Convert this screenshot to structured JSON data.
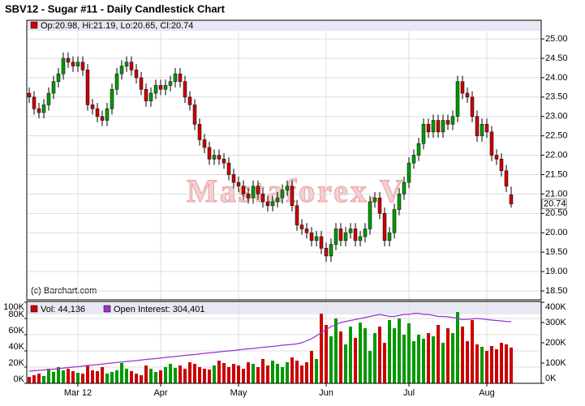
{
  "chart_data": [
    {
      "type": "candlestick",
      "title": "SBV12 - Sugar #11 - Daily Candlestick Chart",
      "ohlc_label": "Op:20.98, Hi:21.19, Lo:20.65, Cl:20.74",
      "last_label": "20.74",
      "watermark": "Mastaforex.V",
      "credit": "(c) Barchart.com",
      "up_color": "#009900",
      "down_color": "#cc0000",
      "label_color": "#cc0000",
      "open": [
        23.6,
        23.5,
        23.2,
        23.1,
        23.3,
        23.6,
        23.9,
        24.1,
        24.5,
        24.4,
        24.3,
        24.4,
        24.2,
        23.3,
        23.2,
        23.0,
        22.9,
        23.2,
        23.7,
        24.1,
        24.3,
        24.4,
        24.2,
        24.0,
        23.7,
        23.4,
        23.6,
        23.8,
        23.7,
        23.8,
        23.9,
        24.1,
        23.9,
        23.5,
        23.3,
        22.8,
        22.4,
        22.2,
        21.9,
        22.0,
        21.9,
        21.8,
        21.5,
        21.3,
        21.2,
        21.0,
        20.9,
        21.2,
        21.0,
        20.8,
        20.7,
        20.8,
        20.9,
        21.1,
        21.2,
        20.7,
        20.2,
        20.1,
        20.0,
        19.8,
        19.9,
        19.6,
        19.4,
        19.7,
        20.1,
        19.8,
        20.0,
        20.1,
        19.8,
        19.9,
        20.1,
        20.8,
        20.9,
        20.5,
        19.8,
        20.0,
        20.6,
        21.0,
        21.3,
        21.8,
        22.0,
        22.3,
        22.8,
        22.6,
        22.9,
        22.6,
        22.9,
        22.8,
        23.0,
        23.9,
        23.6,
        23.5,
        23.0,
        22.5,
        22.8,
        22.6,
        22.0,
        21.9,
        21.6,
        20.98
      ],
      "high": [
        23.75,
        23.65,
        23.35,
        23.45,
        23.75,
        24.05,
        24.25,
        24.65,
        24.65,
        24.55,
        24.55,
        24.55,
        24.35,
        23.45,
        23.35,
        23.15,
        23.35,
        23.85,
        24.25,
        24.45,
        24.55,
        24.55,
        24.35,
        24.15,
        23.85,
        23.75,
        23.95,
        23.95,
        23.95,
        24.05,
        24.25,
        24.25,
        24.05,
        23.65,
        23.45,
        22.95,
        22.55,
        22.35,
        22.15,
        22.15,
        22.05,
        21.95,
        21.65,
        21.45,
        21.35,
        21.15,
        21.35,
        21.35,
        21.15,
        20.95,
        20.95,
        21.05,
        21.25,
        21.35,
        21.35,
        20.85,
        20.35,
        20.25,
        20.15,
        20.05,
        20.05,
        19.75,
        19.85,
        20.25,
        20.25,
        20.15,
        20.25,
        20.25,
        20.05,
        20.25,
        20.95,
        21.05,
        21.05,
        20.65,
        20.15,
        20.75,
        21.15,
        21.45,
        21.95,
        22.15,
        22.45,
        22.95,
        22.95,
        23.05,
        23.05,
        23.05,
        23.05,
        23.15,
        24.05,
        24.05,
        23.75,
        23.65,
        23.15,
        22.95,
        22.95,
        22.75,
        22.15,
        22.05,
        21.75,
        21.19
      ],
      "low": [
        23.35,
        23.05,
        22.95,
        22.95,
        23.15,
        23.45,
        23.75,
        23.95,
        24.25,
        24.15,
        24.15,
        24.05,
        23.15,
        23.05,
        22.85,
        22.75,
        22.75,
        23.05,
        23.55,
        23.95,
        24.15,
        24.05,
        23.85,
        23.55,
        23.25,
        23.25,
        23.45,
        23.55,
        23.55,
        23.65,
        23.75,
        23.75,
        23.35,
        23.15,
        22.65,
        22.25,
        22.05,
        21.75,
        21.75,
        21.75,
        21.65,
        21.35,
        21.15,
        21.05,
        20.85,
        20.75,
        20.75,
        20.85,
        20.65,
        20.55,
        20.55,
        20.65,
        20.75,
        20.95,
        20.55,
        20.05,
        19.95,
        19.85,
        19.65,
        19.65,
        19.45,
        19.25,
        19.25,
        19.55,
        19.65,
        19.65,
        19.85,
        19.65,
        19.65,
        19.75,
        19.95,
        20.65,
        20.35,
        19.65,
        19.65,
        19.85,
        20.45,
        20.85,
        21.15,
        21.65,
        21.85,
        22.15,
        22.45,
        22.45,
        22.45,
        22.45,
        22.65,
        22.65,
        22.85,
        23.45,
        23.35,
        22.85,
        22.35,
        22.35,
        22.45,
        21.85,
        21.75,
        21.45,
        21.05,
        20.65
      ],
      "close": [
        23.5,
        23.2,
        23.1,
        23.3,
        23.6,
        23.9,
        24.1,
        24.5,
        24.4,
        24.3,
        24.4,
        24.2,
        23.3,
        23.2,
        23.0,
        22.9,
        23.2,
        23.7,
        24.1,
        24.3,
        24.4,
        24.2,
        24.0,
        23.7,
        23.4,
        23.6,
        23.8,
        23.7,
        23.8,
        23.9,
        24.1,
        23.9,
        23.5,
        23.3,
        22.8,
        22.4,
        22.2,
        21.9,
        22.0,
        21.9,
        21.8,
        21.5,
        21.3,
        21.2,
        21.0,
        20.9,
        21.2,
        21.0,
        20.8,
        20.7,
        20.8,
        20.9,
        21.1,
        21.2,
        20.7,
        20.2,
        20.1,
        20.0,
        19.8,
        19.9,
        19.6,
        19.4,
        19.7,
        20.1,
        19.8,
        20.0,
        20.1,
        19.8,
        19.9,
        20.1,
        20.8,
        20.9,
        20.5,
        19.8,
        20.0,
        20.6,
        21.0,
        21.3,
        21.8,
        22.0,
        22.3,
        22.8,
        22.6,
        22.9,
        22.6,
        22.9,
        22.8,
        23.0,
        23.9,
        23.6,
        23.5,
        23.0,
        22.5,
        22.8,
        22.6,
        22.0,
        21.9,
        21.6,
        21.2,
        20.74
      ],
      "ylim": [
        18.27,
        25.21
      ],
      "yticks": [
        {
          "value": 18.5,
          "label": "18.50"
        },
        {
          "value": 19,
          "label": "19.00"
        },
        {
          "value": 19.5,
          "label": "19.50"
        },
        {
          "value": 20,
          "label": "20.00"
        },
        {
          "value": 20.5,
          "label": "20.50"
        },
        {
          "value": 21,
          "label": "21.00"
        },
        {
          "value": 21.5,
          "label": "21.50"
        },
        {
          "value": 22,
          "label": "22.00"
        },
        {
          "value": 22.5,
          "label": "22.50"
        },
        {
          "value": 23,
          "label": "23.00"
        },
        {
          "value": 23.5,
          "label": "23.50"
        },
        {
          "value": 24,
          "label": "24.00"
        },
        {
          "value": 24.5,
          "label": "24.50"
        },
        {
          "value": 25,
          "label": "25.00"
        }
      ],
      "grid": true
    },
    {
      "type": "bar",
      "categories": [
        null,
        null,
        null,
        null,
        null,
        null,
        null,
        null,
        null,
        null,
        "Mar 12",
        null,
        null,
        null,
        null,
        null,
        null,
        null,
        null,
        null,
        null,
        null,
        null,
        null,
        null,
        null,
        null,
        "Apr",
        null,
        null,
        null,
        null,
        null,
        null,
        null,
        null,
        null,
        null,
        null,
        null,
        null,
        null,
        null,
        "May",
        null,
        null,
        null,
        null,
        null,
        null,
        null,
        null,
        null,
        null,
        null,
        null,
        null,
        null,
        null,
        null,
        null,
        "Jun",
        null,
        null,
        null,
        null,
        null,
        null,
        null,
        null,
        null,
        null,
        null,
        null,
        null,
        null,
        null,
        null,
        "Jul",
        null,
        null,
        null,
        null,
        null,
        null,
        null,
        null,
        null,
        null,
        null,
        null,
        null,
        null,
        null,
        "Aug",
        null,
        null,
        null,
        null,
        null
      ],
      "series": [
        {
          "name": "Vol: 44,136",
          "color": "#cc0000",
          "values": [
            8000,
            10000,
            12000,
            9000,
            18000,
            14000,
            20000,
            16000,
            18000,
            15000,
            13000,
            12000,
            22000,
            16000,
            15000,
            20000,
            12000,
            14000,
            16000,
            25000,
            18000,
            15000,
            12000,
            10000,
            22000,
            18000,
            14000,
            16000,
            20000,
            24000,
            19000,
            22000,
            18000,
            26000,
            24000,
            20000,
            18000,
            17000,
            22000,
            28000,
            25000,
            20000,
            24000,
            22000,
            18000,
            26000,
            24000,
            20000,
            30000,
            22000,
            28000,
            24000,
            20000,
            26000,
            32000,
            28000,
            22000,
            26000,
            40000,
            30000,
            86000,
            72000,
            58000,
            80000,
            64000,
            48000,
            70000,
            56000,
            75000,
            68000,
            40000,
            62000,
            70000,
            50000,
            78000,
            68000,
            80000,
            60000,
            74000,
            52000,
            60000,
            55000,
            62000,
            58000,
            72000,
            50000,
            68000,
            62000,
            88000,
            70000,
            52000,
            78000,
            48000,
            45000,
            40000,
            46000,
            42000,
            50000,
            48000,
            44136
          ]
        },
        {
          "name": "Open Interest: 304,401",
          "color": "#9933cc",
          "axis": "y2",
          "values": [
            60000,
            62000,
            64000,
            66000,
            68000,
            70000,
            72000,
            75000,
            78000,
            80000,
            82000,
            85000,
            88000,
            90000,
            92000,
            95000,
            98000,
            100000,
            103000,
            105000,
            108000,
            110000,
            112000,
            115000,
            118000,
            120000,
            122000,
            125000,
            128000,
            130000,
            132000,
            135000,
            138000,
            140000,
            142000,
            145000,
            148000,
            150000,
            152000,
            155000,
            158000,
            160000,
            162000,
            165000,
            168000,
            170000,
            172000,
            175000,
            178000,
            180000,
            182000,
            185000,
            188000,
            190000,
            192000,
            195000,
            200000,
            210000,
            220000,
            235000,
            250000,
            265000,
            280000,
            290000,
            300000,
            305000,
            310000,
            315000,
            320000,
            325000,
            330000,
            335000,
            340000,
            335000,
            330000,
            330000,
            335000,
            340000,
            340000,
            345000,
            345000,
            340000,
            340000,
            335000,
            330000,
            330000,
            328000,
            325000,
            320000,
            315000,
            315000,
            318000,
            320000,
            318000,
            315000,
            312000,
            310000,
            308000,
            305000,
            304401
          ]
        }
      ],
      "ylim": [
        0,
        100000
      ],
      "yticks": [
        {
          "value": 0,
          "label": "0K"
        },
        {
          "value": 20000,
          "label": "20K"
        },
        {
          "value": 40000,
          "label": "40K"
        },
        {
          "value": 60000,
          "label": "60K"
        },
        {
          "value": 80000,
          "label": "80K"
        },
        {
          "value": 100000,
          "label": "100K"
        }
      ],
      "y2lim": [
        0,
        400000
      ],
      "y2ticks": [
        {
          "value": 0,
          "label": "0K"
        },
        {
          "value": 100000,
          "label": "100K"
        },
        {
          "value": 200000,
          "label": "200K"
        },
        {
          "value": 300000,
          "label": "300K"
        },
        {
          "value": 400000,
          "label": "400K"
        }
      ],
      "grid": true
    }
  ]
}
